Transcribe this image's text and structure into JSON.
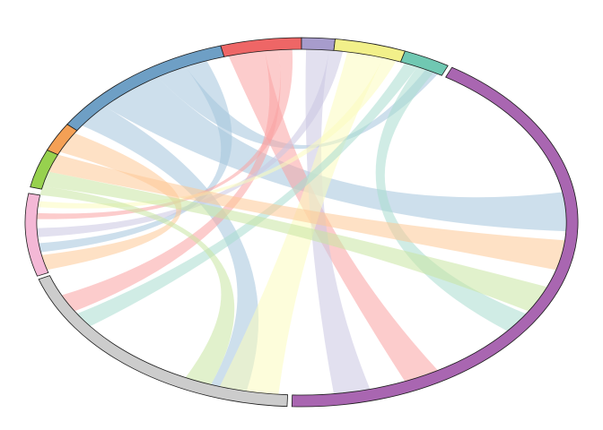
{
  "chart_data": {
    "type": "chord",
    "title": "",
    "sectors": [
      {
        "id": "S1",
        "color": "#6E9FC5",
        "start": 212,
        "end": 253
      },
      {
        "id": "S2",
        "color": "#EE6666",
        "start": 253,
        "end": 270
      },
      {
        "id": "S3",
        "color": "#A79CCC",
        "start": 270,
        "end": 277
      },
      {
        "id": "S4",
        "color": "#F2F08A",
        "start": 277,
        "end": 292
      },
      {
        "id": "S5",
        "color": "#70C8B2",
        "start": 292,
        "end": 302
      },
      {
        "id": "S6",
        "color": "#A966B1",
        "start": 303,
        "end": 452
      },
      {
        "id": "S7",
        "color": "#CCCCCC",
        "start": 453,
        "end": 522
      },
      {
        "id": "S8",
        "color": "#F4B8D6",
        "start": 523,
        "end": 549
      },
      {
        "id": "S9",
        "color": "#97D14E",
        "start": 551,
        "end": 563
      },
      {
        "id": "S10",
        "color": "#F4A055",
        "start": 563,
        "end": 572
      }
    ],
    "ribbon_colors": [
      "#A4C5DC",
      "#F9A3A3",
      "#CBC6E2",
      "#FCFBBD",
      "#A9DCD0",
      "#FDC895",
      "#C8E5A2"
    ],
    "links": [
      {
        "ci": 0,
        "a0": 214,
        "a1": 222,
        "b0": 462,
        "b1": 470
      },
      {
        "ci": 0,
        "a0": 222,
        "a1": 237,
        "b0": 350,
        "b1": 363
      },
      {
        "ci": 0,
        "a0": 237,
        "a1": 244,
        "b0": 298,
        "b1": 301
      },
      {
        "ci": 0,
        "a0": 244,
        "a1": 249,
        "b0": 530,
        "b1": 533
      },
      {
        "ci": 1,
        "a0": 254,
        "a1": 262,
        "b0": 419,
        "b1": 427
      },
      {
        "ci": 1,
        "a0": 262,
        "a1": 265,
        "b0": 509,
        "b1": 515
      },
      {
        "ci": 1,
        "a0": 265,
        "a1": 268,
        "b0": 541,
        "b1": 543
      },
      {
        "ci": 2,
        "a0": 271,
        "a1": 276,
        "b0": 435,
        "b1": 443
      },
      {
        "ci": 2,
        "a0": 276,
        "a1": 279,
        "b0": 535,
        "b1": 538
      },
      {
        "ci": 3,
        "a0": 280,
        "a1": 288,
        "b0": 455,
        "b1": 468
      },
      {
        "ci": 3,
        "a0": 288,
        "a1": 291,
        "b0": 545,
        "b1": 547
      },
      {
        "ci": 4,
        "a0": 293,
        "a1": 296,
        "b0": 503,
        "b1": 508
      },
      {
        "ci": 4,
        "a0": 296,
        "a1": 300,
        "b0": 392,
        "b1": 399
      },
      {
        "ci": 5,
        "a0": 564,
        "a1": 571,
        "b0": 524,
        "b1": 529
      },
      {
        "ci": 5,
        "a0": 557,
        "a1": 563,
        "b0": 366,
        "b1": 376
      },
      {
        "ci": 6,
        "a0": 552,
        "a1": 557,
        "b0": 382,
        "b1": 391
      },
      {
        "ci": 6,
        "a0": 549,
        "a1": 552,
        "b0": 470,
        "b1": 476
      }
    ]
  }
}
